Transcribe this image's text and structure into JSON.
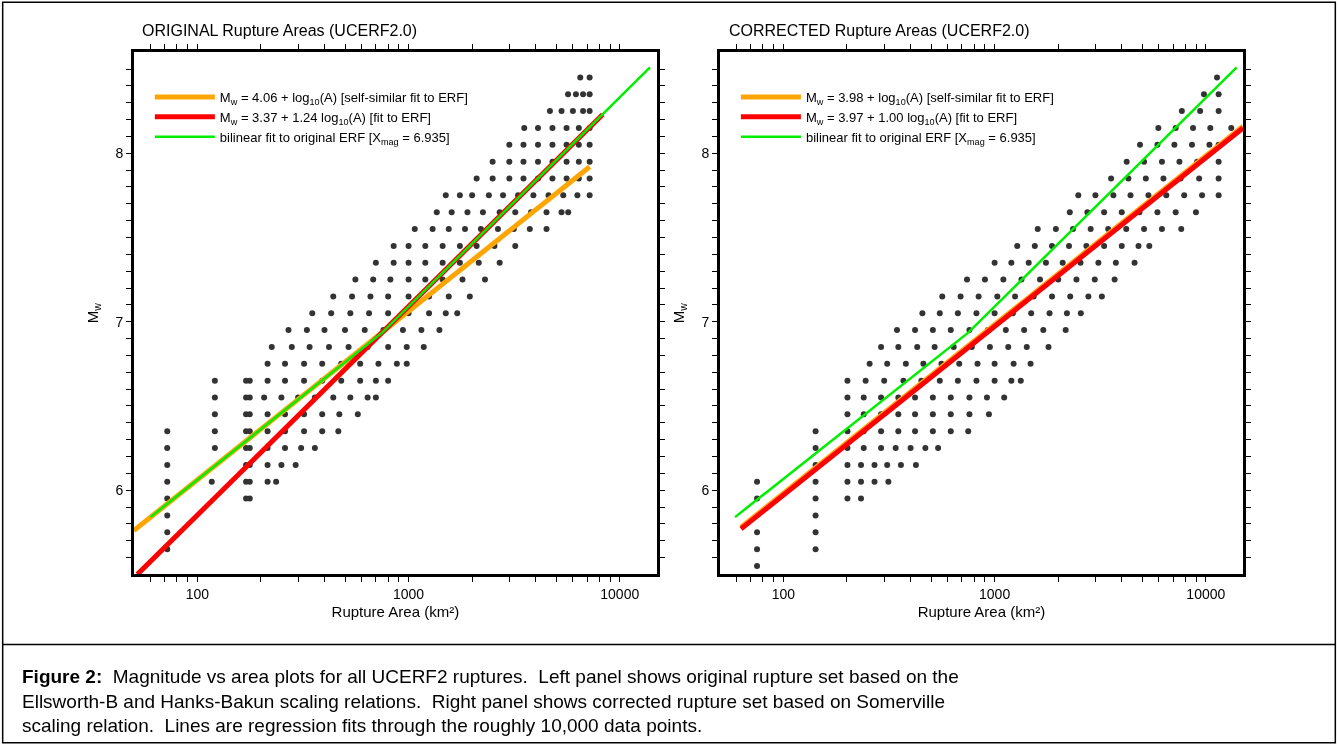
{
  "chart_data": [
    {
      "type": "scatter",
      "title": "ORIGINAL Rupture Areas (UCERF2.0)",
      "xlabel": "Rupture Area (km²)",
      "ylabel": "M$_{w}$",
      "log": "x",
      "legend": "top left",
      "xlim": [
        50,
        15000
      ],
      "ylim": [
        5.5,
        8.6
      ],
      "xticks": [
        {
          "value": 60,
          "label": null
        },
        {
          "value": 70,
          "label": null
        },
        {
          "value": 80,
          "label": null
        },
        {
          "value": 90,
          "label": null
        },
        100,
        {
          "value": 200,
          "label": null
        },
        {
          "value": 300,
          "label": null
        },
        {
          "value": 400,
          "label": null
        },
        {
          "value": 500,
          "label": null
        },
        {
          "value": 600,
          "label": null
        },
        {
          "value": 700,
          "label": null
        },
        {
          "value": 800,
          "label": null
        },
        {
          "value": 900,
          "label": null
        },
        1000,
        {
          "value": 2000,
          "label": null
        },
        {
          "value": 3000,
          "label": null
        },
        {
          "value": 4000,
          "label": null
        },
        {
          "value": 5000,
          "label": null
        },
        {
          "value": 6000,
          "label": null
        },
        {
          "value": 7000,
          "label": null
        },
        {
          "value": 8000,
          "label": null
        },
        {
          "value": 9000,
          "label": null
        },
        10000
      ],
      "yticks": [
        {
          "value": 5.6,
          "label": null
        },
        {
          "value": 5.7,
          "label": null
        },
        {
          "value": 5.8,
          "label": null
        },
        {
          "value": 5.9,
          "label": null
        },
        6,
        {
          "value": 6.1,
          "label": null
        },
        {
          "value": 6.2,
          "label": null
        },
        {
          "value": 6.3,
          "label": null
        },
        {
          "value": 6.4,
          "label": null
        },
        {
          "value": 6.5,
          "label": null
        },
        {
          "value": 6.6,
          "label": null
        },
        {
          "value": 6.7,
          "label": null
        },
        {
          "value": 6.8,
          "label": null
        },
        {
          "value": 6.9,
          "label": null
        },
        7,
        {
          "value": 7.1,
          "label": null
        },
        {
          "value": 7.2,
          "label": null
        },
        {
          "value": 7.3,
          "label": null
        },
        {
          "value": 7.4,
          "label": null
        },
        {
          "value": 7.5,
          "label": null
        },
        {
          "value": 7.6,
          "label": null
        },
        {
          "value": 7.7,
          "label": null
        },
        {
          "value": 7.8,
          "label": null
        },
        {
          "value": 7.9,
          "label": null
        },
        8,
        {
          "value": 8.1,
          "label": null
        },
        {
          "value": 8.2,
          "label": null
        },
        {
          "value": 8.3,
          "label": null
        },
        {
          "value": 8.4,
          "label": null
        },
        {
          "value": 8.5,
          "label": null
        }
      ],
      "annotations": [
        "Figure 2:  Magnitude vs area plots for all UCERF2 ruptures.  Left panel shows original rupture set based on the Ellsworth-B and Hanks-Bakun scaling relations.  Right panel shows corrected rupture set based on Somerville scaling relation.  Lines are regression fits through the roughly 10,000 data points."
      ],
      "series": [
        {
          "marker": "circle",
          "color": "#333333",
          "x": [
            6500,
            7200,
            5690,
            6200,
            6700,
            7200,
            4670,
            5300,
            6000,
            6700,
            7200,
            3530,
            4100,
            4800,
            5600,
            6400,
            7200,
            3000,
            3500,
            4100,
            4800,
            5600,
            6400,
            7200,
            2500,
            3000,
            3500,
            4100,
            4800,
            5600,
            6400,
            7200,
            2100,
            2500,
            3000,
            3500,
            4100,
            4800,
            5600,
            6400,
            7200,
            1500,
            1750,
            2000,
            2400,
            2800,
            3300,
            3900,
            4600,
            5400,
            6300,
            7200,
            1360,
            1600,
            1900,
            2250,
            2700,
            3200,
            3800,
            4500,
            5300,
            5700,
            1070,
            1300,
            1550,
            1850,
            2200,
            2650,
            3150,
            3750,
            4500,
            850,
            1000,
            1200,
            1450,
            1750,
            2100,
            2550,
            3200,
            700,
            850,
            1000,
            1200,
            1450,
            1750,
            2150,
            2700,
            560,
            680,
            820,
            1000,
            1200,
            1450,
            1800,
            2300,
            440,
            540,
            660,
            800,
            1000,
            1250,
            1550,
            1950,
            350,
            430,
            530,
            650,
            800,
            1000,
            1250,
            1500,
            1700,
            270,
            330,
            400,
            500,
            620,
            760,
            940,
            1150,
            1400,
            225,
            280,
            340,
            420,
            520,
            640,
            800,
            980,
            1180,
            215,
            260,
            320,
            390,
            480,
            590,
            720,
            880,
            980,
            121,
            170,
            177,
            215,
            260,
            320,
            390,
            480,
            590,
            700,
            800,
            121,
            170,
            177,
            207,
            250,
            300,
            360,
            440,
            530,
            640,
            700,
            121,
            170,
            177,
            215,
            260,
            320,
            390,
            470,
            575,
            72,
            121,
            170,
            177,
            215,
            260,
            320,
            390,
            465,
            72,
            121,
            170,
            177,
            215,
            260,
            310,
            360,
            72,
            170,
            177,
            215,
            250,
            292,
            72,
            117,
            170,
            177,
            215,
            236,
            72,
            170,
            177,
            72,
            72,
            72
          ],
          "values": [
            8.45,
            8.45,
            8.35,
            8.35,
            8.35,
            8.35,
            8.25,
            8.25,
            8.25,
            8.25,
            8.25,
            8.15,
            8.15,
            8.15,
            8.15,
            8.15,
            8.15,
            8.05,
            8.05,
            8.05,
            8.05,
            8.05,
            8.05,
            8.05,
            7.95,
            7.95,
            7.95,
            7.95,
            7.95,
            7.95,
            7.95,
            7.95,
            7.85,
            7.85,
            7.85,
            7.85,
            7.85,
            7.85,
            7.85,
            7.85,
            7.85,
            7.75,
            7.75,
            7.75,
            7.75,
            7.75,
            7.75,
            7.75,
            7.75,
            7.75,
            7.75,
            7.75,
            7.65,
            7.65,
            7.65,
            7.65,
            7.65,
            7.65,
            7.65,
            7.65,
            7.65,
            7.65,
            7.55,
            7.55,
            7.55,
            7.55,
            7.55,
            7.55,
            7.55,
            7.55,
            7.55,
            7.45,
            7.45,
            7.45,
            7.45,
            7.45,
            7.45,
            7.45,
            7.45,
            7.35,
            7.35,
            7.35,
            7.35,
            7.35,
            7.35,
            7.35,
            7.35,
            7.25,
            7.25,
            7.25,
            7.25,
            7.25,
            7.25,
            7.25,
            7.25,
            7.15,
            7.15,
            7.15,
            7.15,
            7.15,
            7.15,
            7.15,
            7.15,
            7.05,
            7.05,
            7.05,
            7.05,
            7.05,
            7.05,
            7.05,
            7.05,
            7.05,
            6.95,
            6.95,
            6.95,
            6.95,
            6.95,
            6.95,
            6.95,
            6.95,
            6.95,
            6.85,
            6.85,
            6.85,
            6.85,
            6.85,
            6.85,
            6.85,
            6.85,
            6.85,
            6.75,
            6.75,
            6.75,
            6.75,
            6.75,
            6.75,
            6.75,
            6.75,
            6.75,
            6.65,
            6.65,
            6.65,
            6.65,
            6.65,
            6.65,
            6.65,
            6.65,
            6.65,
            6.65,
            6.65,
            6.55,
            6.55,
            6.55,
            6.55,
            6.55,
            6.55,
            6.55,
            6.55,
            6.55,
            6.55,
            6.55,
            6.45,
            6.45,
            6.45,
            6.45,
            6.45,
            6.45,
            6.45,
            6.45,
            6.45,
            6.35,
            6.35,
            6.35,
            6.35,
            6.35,
            6.35,
            6.35,
            6.35,
            6.35,
            6.25,
            6.25,
            6.25,
            6.25,
            6.25,
            6.25,
            6.25,
            6.25,
            6.15,
            6.15,
            6.15,
            6.15,
            6.15,
            6.15,
            6.05,
            6.05,
            6.05,
            6.05,
            6.05,
            6.05,
            5.95,
            5.95,
            5.95,
            5.85,
            5.75,
            5.65
          ]
        },
        {
          "type": "line",
          "marker": "none",
          "name": "M$_{w}$ = 4.06 + log$_{10}$(A) [self-similar fit to ERF]",
          "color": "#ffa500",
          "x": [
            50,
            7200
          ],
          "values": [
            5.76,
            7.92
          ]
        },
        {
          "type": "line",
          "marker": "none",
          "name": "M$_{w}$ = 3.37 + 1.24 log$_{10}$(A) [fit to ERF]",
          "color": "#ff0000",
          "x": [
            52,
            8300
          ],
          "values": [
            5.5,
            8.23
          ]
        },
        {
          "type": "line",
          "marker": "none",
          "name": "bilinear fit to original ERF [X$_{mag}$ = 6.935]",
          "color": "#00ee00",
          "x": [
            60,
            750,
            13900
          ],
          "values": [
            5.84,
            6.935,
            8.51
          ]
        }
      ]
    },
    {
      "type": "scatter",
      "title": "CORRECTED Rupture Areas (UCERF2.0)",
      "xlabel": "Rupture Area (km²)",
      "ylabel": "M$_{w}$",
      "log": "x",
      "legend": "top left",
      "xlim": [
        50,
        15000
      ],
      "ylim": [
        5.5,
        8.6
      ],
      "xticks": [
        {
          "value": 60,
          "label": null
        },
        {
          "value": 70,
          "label": null
        },
        {
          "value": 80,
          "label": null
        },
        {
          "value": 90,
          "label": null
        },
        100,
        {
          "value": 200,
          "label": null
        },
        {
          "value": 300,
          "label": null
        },
        {
          "value": 400,
          "label": null
        },
        {
          "value": 500,
          "label": null
        },
        {
          "value": 600,
          "label": null
        },
        {
          "value": 700,
          "label": null
        },
        {
          "value": 800,
          "label": null
        },
        {
          "value": 900,
          "label": null
        },
        1000,
        {
          "value": 2000,
          "label": null
        },
        {
          "value": 3000,
          "label": null
        },
        {
          "value": 4000,
          "label": null
        },
        {
          "value": 5000,
          "label": null
        },
        {
          "value": 6000,
          "label": null
        },
        {
          "value": 7000,
          "label": null
        },
        {
          "value": 8000,
          "label": null
        },
        {
          "value": 9000,
          "label": null
        },
        10000
      ],
      "yticks": [
        {
          "value": 5.6,
          "label": null
        },
        {
          "value": 5.7,
          "label": null
        },
        {
          "value": 5.8,
          "label": null
        },
        {
          "value": 5.9,
          "label": null
        },
        6,
        {
          "value": 6.1,
          "label": null
        },
        {
          "value": 6.2,
          "label": null
        },
        {
          "value": 6.3,
          "label": null
        },
        {
          "value": 6.4,
          "label": null
        },
        {
          "value": 6.5,
          "label": null
        },
        {
          "value": 6.6,
          "label": null
        },
        {
          "value": 6.7,
          "label": null
        },
        {
          "value": 6.8,
          "label": null
        },
        {
          "value": 6.9,
          "label": null
        },
        7,
        {
          "value": 7.1,
          "label": null
        },
        {
          "value": 7.2,
          "label": null
        },
        {
          "value": 7.3,
          "label": null
        },
        {
          "value": 7.4,
          "label": null
        },
        {
          "value": 7.5,
          "label": null
        },
        {
          "value": 7.6,
          "label": null
        },
        {
          "value": 7.7,
          "label": null
        },
        {
          "value": 7.8,
          "label": null
        },
        {
          "value": 7.9,
          "label": null
        },
        8,
        {
          "value": 8.1,
          "label": null
        },
        {
          "value": 8.2,
          "label": null
        },
        {
          "value": 8.3,
          "label": null
        },
        {
          "value": 8.4,
          "label": null
        },
        {
          "value": 8.5,
          "label": null
        }
      ],
      "series": [
        {
          "marker": "circle",
          "color": "#333333",
          "x": [
            75,
            75,
            142,
            75,
            142,
            142,
            75,
            142,
            201,
            233,
            75,
            142,
            201,
            233,
            270,
            314,
            142,
            201,
            233,
            270,
            310,
            360,
            424,
            142,
            201,
            240,
            290,
            340,
            400,
            470,
            540,
            142,
            201,
            240,
            290,
            350,
            420,
            510,
            620,
            750,
            201,
            240,
            290,
            350,
            420,
            510,
            620,
            760,
            940,
            201,
            240,
            290,
            350,
            420,
            510,
            620,
            760,
            920,
            1110,
            201,
            245,
            300,
            370,
            450,
            550,
            670,
            820,
            1000,
            1200,
            1330,
            256,
            310,
            380,
            460,
            560,
            680,
            830,
            1000,
            1230,
            1480,
            290,
            350,
            430,
            520,
            640,
            780,
            950,
            1160,
            1420,
            1800,
            345,
            420,
            510,
            620,
            760,
            930,
            1130,
            1380,
            1700,
            2170,
            455,
            550,
            670,
            820,
            1000,
            1220,
            1490,
            1820,
            2200,
            2560,
            565,
            690,
            840,
            1030,
            1250,
            1530,
            1870,
            2280,
            2780,
            3220,
            740,
            900,
            1100,
            1340,
            1640,
            2000,
            2440,
            2980,
            3700,
            1000,
            1200,
            1450,
            1750,
            2100,
            2550,
            3100,
            3750,
            4600,
            1280,
            1550,
            1870,
            2250,
            2720,
            3300,
            4000,
            4800,
            5400,
            1600,
            1950,
            2350,
            2850,
            3450,
            4200,
            5100,
            6200,
            7650,
            2270,
            2750,
            3300,
            4000,
            4850,
            5900,
            7200,
            8980,
            2490,
            3000,
            3650,
            4400,
            5350,
            6500,
            7900,
            9600,
            11500,
            3560,
            4300,
            5200,
            6300,
            7600,
            9300,
            11500,
            4220,
            5100,
            6200,
            7500,
            9100,
            11500,
            4880,
            5900,
            7100,
            8600,
            10400,
            11500,
            5960,
            7200,
            8700,
            10500,
            13200,
            7700,
            9400,
            11500,
            9800,
            11500,
            11300
          ],
          "values": [
            5.55,
            5.65,
            5.65,
            5.75,
            5.75,
            5.85,
            5.95,
            5.95,
            5.95,
            5.95,
            6.05,
            6.05,
            6.05,
            6.05,
            6.05,
            6.05,
            6.15,
            6.15,
            6.15,
            6.15,
            6.15,
            6.15,
            6.15,
            6.25,
            6.25,
            6.25,
            6.25,
            6.25,
            6.25,
            6.25,
            6.25,
            6.35,
            6.35,
            6.35,
            6.35,
            6.35,
            6.35,
            6.35,
            6.35,
            6.35,
            6.45,
            6.45,
            6.45,
            6.45,
            6.45,
            6.45,
            6.45,
            6.45,
            6.45,
            6.55,
            6.55,
            6.55,
            6.55,
            6.55,
            6.55,
            6.55,
            6.55,
            6.55,
            6.55,
            6.65,
            6.65,
            6.65,
            6.65,
            6.65,
            6.65,
            6.65,
            6.65,
            6.65,
            6.65,
            6.65,
            6.75,
            6.75,
            6.75,
            6.75,
            6.75,
            6.75,
            6.75,
            6.75,
            6.75,
            6.75,
            6.85,
            6.85,
            6.85,
            6.85,
            6.85,
            6.85,
            6.85,
            6.85,
            6.85,
            6.85,
            6.95,
            6.95,
            6.95,
            6.95,
            6.95,
            6.95,
            6.95,
            6.95,
            6.95,
            6.95,
            7.05,
            7.05,
            7.05,
            7.05,
            7.05,
            7.05,
            7.05,
            7.05,
            7.05,
            7.05,
            7.15,
            7.15,
            7.15,
            7.15,
            7.15,
            7.15,
            7.15,
            7.15,
            7.15,
            7.15,
            7.25,
            7.25,
            7.25,
            7.25,
            7.25,
            7.25,
            7.25,
            7.25,
            7.25,
            7.35,
            7.35,
            7.35,
            7.35,
            7.35,
            7.35,
            7.35,
            7.35,
            7.35,
            7.45,
            7.45,
            7.45,
            7.45,
            7.45,
            7.45,
            7.45,
            7.45,
            7.45,
            7.55,
            7.55,
            7.55,
            7.55,
            7.55,
            7.55,
            7.55,
            7.55,
            7.55,
            7.65,
            7.65,
            7.65,
            7.65,
            7.65,
            7.65,
            7.65,
            7.65,
            7.75,
            7.75,
            7.75,
            7.75,
            7.75,
            7.75,
            7.75,
            7.75,
            7.75,
            7.85,
            7.85,
            7.85,
            7.85,
            7.85,
            7.85,
            7.85,
            7.95,
            7.95,
            7.95,
            7.95,
            7.95,
            7.95,
            8.05,
            8.05,
            8.05,
            8.05,
            8.05,
            8.05,
            8.15,
            8.15,
            8.15,
            8.15,
            8.15,
            8.25,
            8.25,
            8.25,
            8.35,
            8.35,
            8.45
          ]
        },
        {
          "type": "line",
          "marker": "none",
          "name": "M$_{w}$ = 3.98 + log$_{10}$(A) [self-similar fit to ERF]",
          "color": "#ffa500",
          "x": [
            63,
            15000
          ],
          "values": [
            5.78,
            8.16
          ]
        },
        {
          "type": "line",
          "marker": "none",
          "name": "M$_{w}$ = 3.97 + 1.00 log$_{10}$(A) [fit to ERF]",
          "color": "#ff0000",
          "x": [
            63,
            15000
          ],
          "values": [
            5.77,
            8.15
          ]
        },
        {
          "type": "line",
          "marker": "none",
          "name": "bilinear fit to original ERF [X$_{mag}$ = 6.935]",
          "color": "#00ee00",
          "x": [
            59,
            750,
            14000
          ],
          "values": [
            5.84,
            6.935,
            8.51
          ]
        }
      ]
    }
  ]
}
